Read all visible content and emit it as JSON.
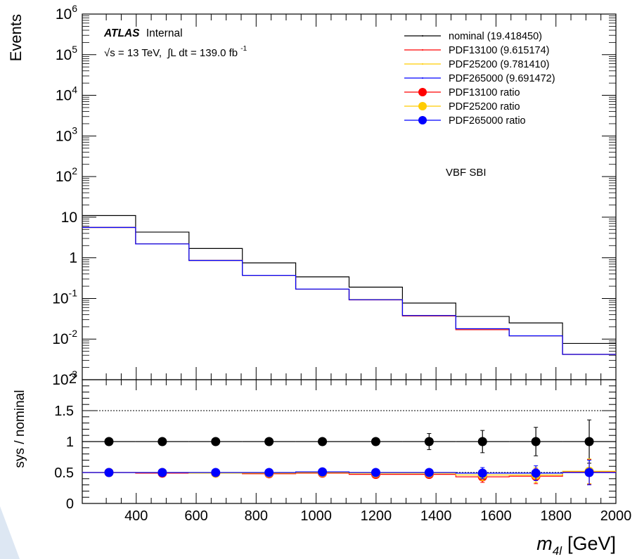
{
  "chart_data": [
    {
      "type": "line",
      "panel": "main",
      "ylabel": "Events",
      "yscale": "log",
      "ylim": [
        0.001,
        1000000
      ],
      "xlim": [
        220,
        2000
      ],
      "y_tick_labels": [
        "10^-3",
        "10^-2",
        "10^-1",
        "1",
        "10",
        "10^2",
        "10^3",
        "10^4",
        "10^5",
        "10^6"
      ],
      "x_edges": [
        220,
        398,
        576,
        754,
        932,
        1110,
        1288,
        1466,
        1644,
        1822,
        2000
      ],
      "series": [
        {
          "name": "nominal (19.418450)",
          "color": "#000000",
          "values": [
            11,
            4.3,
            1.7,
            0.75,
            0.34,
            0.19,
            0.077,
            0.036,
            0.025,
            0.0078
          ]
        },
        {
          "name": "PDF13100 (9.615174)",
          "color": "#ff0000",
          "values": [
            5.6,
            2.2,
            0.86,
            0.37,
            0.17,
            0.092,
            0.037,
            0.017,
            0.012,
            0.0042
          ]
        },
        {
          "name": "PDF25200 (9.781410)",
          "color": "#ffcc00",
          "values": [
            5.6,
            2.2,
            0.86,
            0.37,
            0.17,
            0.094,
            0.038,
            0.018,
            0.012,
            0.0042
          ]
        },
        {
          "name": "PDF265000 (9.691472)",
          "color": "#0000ff",
          "values": [
            5.6,
            2.2,
            0.86,
            0.37,
            0.17,
            0.093,
            0.038,
            0.018,
            0.012,
            0.0042
          ]
        }
      ],
      "annotations": {
        "atlas_bold": "ATLAS",
        "atlas_rest": "Internal",
        "lumi_a": "√s = 13 TeV,",
        "lumi_b": "∫L dt = 139.0 fb",
        "lumi_sup": "-1",
        "sample": "VBF SBI"
      }
    },
    {
      "type": "scatter",
      "panel": "ratio",
      "ylabel": "sys / nominal",
      "xlabel": "m_4l [GeV]",
      "ylim": [
        0,
        2
      ],
      "xlim": [
        220,
        2000
      ],
      "y_ticks": [
        "0",
        "0.5",
        "1",
        "1.5",
        "2"
      ],
      "x_ticks": [
        "400",
        "600",
        "800",
        "1000",
        "1200",
        "1400",
        "1600",
        "1800",
        "2000"
      ],
      "reference_lines": [
        1.5,
        1.0,
        0.5
      ],
      "x_centers": [
        309,
        487,
        665,
        843,
        1021,
        1199,
        1377,
        1555,
        1733,
        1911
      ],
      "series": [
        {
          "name": "",
          "color": "#000000",
          "values": [
            1.0,
            1.0,
            1.0,
            1.0,
            1.0,
            1.0,
            1.0,
            1.0,
            1.0,
            1.0
          ],
          "errors": [
            0.01,
            0.01,
            0.01,
            0.015,
            0.02,
            0.05,
            0.13,
            0.18,
            0.23,
            0.35
          ]
        },
        {
          "name": "PDF13100 ratio",
          "color": "#ff0000",
          "values": [
            0.5,
            0.49,
            0.49,
            0.48,
            0.49,
            0.47,
            0.47,
            0.43,
            0.44,
            0.51
          ],
          "errors": [
            0.005,
            0.005,
            0.008,
            0.01,
            0.015,
            0.02,
            0.05,
            0.09,
            0.12,
            0.2
          ]
        },
        {
          "name": "PDF25200 ratio",
          "color": "#ffcc00",
          "values": [
            0.5,
            0.5,
            0.49,
            0.49,
            0.5,
            0.49,
            0.49,
            0.46,
            0.46,
            0.52
          ],
          "errors": [
            0.005,
            0.005,
            0.008,
            0.01,
            0.015,
            0.02,
            0.05,
            0.09,
            0.12,
            0.2
          ]
        },
        {
          "name": "PDF265000 ratio",
          "color": "#0000ff",
          "values": [
            0.5,
            0.5,
            0.5,
            0.5,
            0.51,
            0.5,
            0.5,
            0.49,
            0.49,
            0.5
          ],
          "errors": [
            0.005,
            0.005,
            0.008,
            0.01,
            0.015,
            0.02,
            0.05,
            0.09,
            0.12,
            0.2
          ]
        }
      ],
      "xlabel_main": "m",
      "xlabel_sub": "4l",
      "xlabel_unit": "[GeV]"
    }
  ],
  "legend": {
    "placement": "top-right",
    "items": [
      {
        "label": "nominal (19.418450)",
        "color": "#000000",
        "marker": false
      },
      {
        "label": "PDF13100 (9.615174)",
        "color": "#ff0000",
        "marker": false
      },
      {
        "label": "PDF25200 (9.781410)",
        "color": "#ffcc00",
        "marker": false
      },
      {
        "label": "PDF265000 (9.691472)",
        "color": "#0000ff",
        "marker": false
      },
      {
        "label": "PDF13100 ratio",
        "color": "#ff0000",
        "marker": true
      },
      {
        "label": "PDF25200 ratio",
        "color": "#ffcc00",
        "marker": true
      },
      {
        "label": "PDF265000 ratio",
        "color": "#0000ff",
        "marker": true
      }
    ]
  }
}
